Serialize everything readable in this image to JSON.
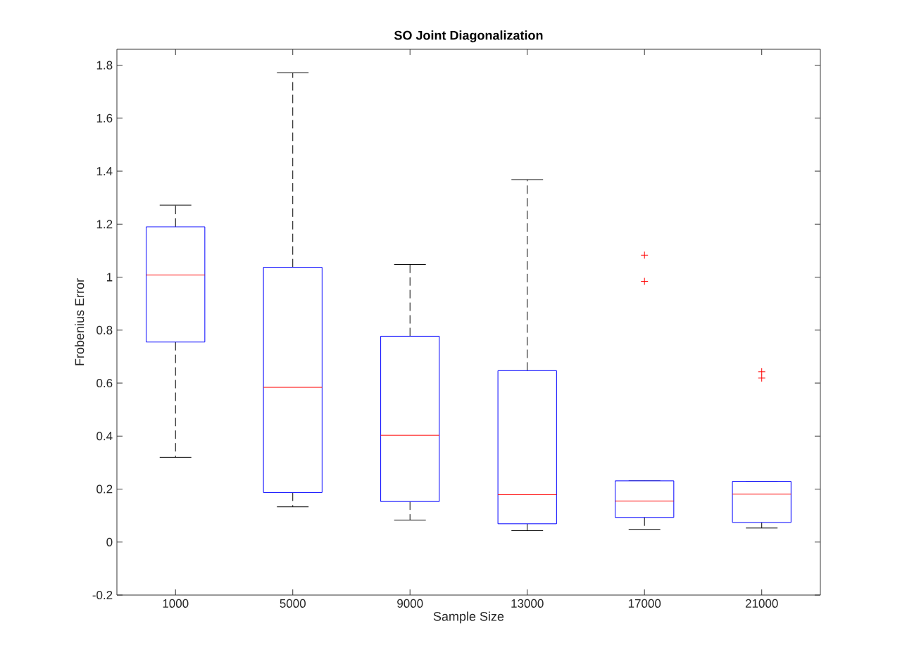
{
  "chart_data": {
    "type": "box",
    "title": "SO Joint Diagonalization",
    "xlabel": "Sample Size",
    "ylabel": "Frobenius Error",
    "categories": [
      "1000",
      "5000",
      "9000",
      "13000",
      "17000",
      "21000"
    ],
    "ylim": [
      -0.2,
      1.86
    ],
    "yticks": [
      -0.2,
      0,
      0.2,
      0.4,
      0.6,
      0.8,
      1,
      1.2,
      1.4,
      1.6,
      1.8
    ],
    "series": [
      {
        "color": "#0000ff",
        "boxes": [
          {
            "low": 0.32,
            "q1": 0.755,
            "median": 1.008,
            "q3": 1.19,
            "high": 1.272
          },
          {
            "low": 0.133,
            "q1": 0.187,
            "median": 0.584,
            "q3": 1.037,
            "high": 1.771
          },
          {
            "low": 0.083,
            "q1": 0.153,
            "median": 0.403,
            "q3": 0.777,
            "high": 1.048
          },
          {
            "low": 0.043,
            "q1": 0.069,
            "median": 0.179,
            "q3": 0.647,
            "high": 1.368
          },
          {
            "low": 0.048,
            "q1": 0.093,
            "median": 0.155,
            "q3": 0.231,
            "high": 0.231,
            "outliers": [
              1.083,
              0.984
            ]
          },
          {
            "low": 0.053,
            "q1": 0.074,
            "median": 0.181,
            "q3": 0.229,
            "high": 0.229,
            "outliers": [
              0.643,
              0.619
            ]
          }
        ]
      }
    ]
  }
}
